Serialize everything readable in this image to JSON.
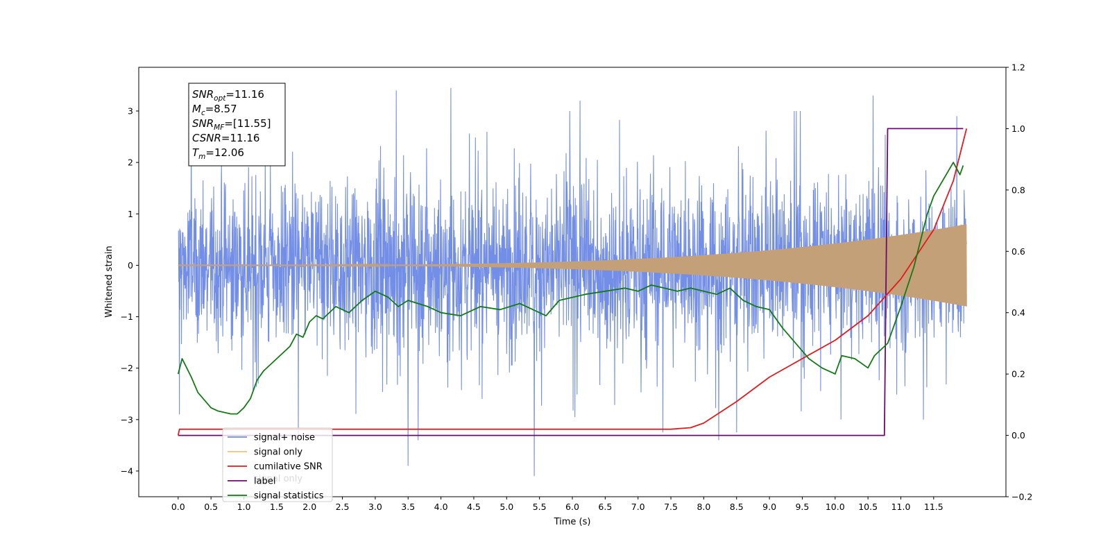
{
  "chart_data": {
    "type": "line",
    "xlabel": "Time (s)",
    "ylabel": "Whitened strain",
    "xlim": [
      -0.6,
      12.6
    ],
    "ylim": [
      -4.5,
      3.85
    ],
    "y2lim": [
      -0.2,
      1.2
    ],
    "grid": false,
    "legend_placement": "lower-left",
    "x_ticks": [
      "0.0",
      "0.5",
      "1.0",
      "1.5",
      "2.0",
      "2.5",
      "3.0",
      "3.5",
      "4.0",
      "4.5",
      "5.0",
      "5.5",
      "6.0",
      "6.5",
      "7.0",
      "7.5",
      "8.0",
      "8.5",
      "9.0",
      "9.5",
      "10.0",
      "10.5",
      "11.0",
      "11.5"
    ],
    "y_ticks": [
      "3",
      "2",
      "1",
      "0",
      "−1",
      "−2",
      "−3",
      "−4"
    ],
    "y2_ticks": [
      "1.2",
      "1.0",
      "0.8",
      "0.6",
      "0.4",
      "0.2",
      "0.0",
      "−0.2"
    ],
    "stats_box": [
      {
        "main": "SNR",
        "sub": "opt",
        "rest": "=11.16"
      },
      {
        "main": "M",
        "sub": "c",
        "rest": "=8.57"
      },
      {
        "main": "SNR",
        "sub": "MF",
        "rest": "=[11.55]"
      },
      {
        "main": "CSNR",
        "sub": "",
        "rest": "=11.16"
      },
      {
        "main": "T",
        "sub": "m",
        "rest": "=12.06"
      }
    ],
    "legend": [
      {
        "label": "signal+ noise",
        "color": "#6b88e6"
      },
      {
        "label": "signal only",
        "color": "#f5c26b"
      },
      {
        "label": "cumilative SNR",
        "color": "#e41a1c"
      },
      {
        "label": "label",
        "color": "#6a0d6a"
      },
      {
        "label": "signal statistics",
        "color": "#137a13"
      }
    ],
    "ghost_label": "signal only",
    "series": [
      {
        "name": "signal+ noise",
        "axis": "left",
        "color": "#6b88e6",
        "x_range": [
          0.0,
          12.0
        ],
        "envelope_low": -1.6,
        "envelope_high": 1.6,
        "spikes": [
          [
            0.02,
            -2.9
          ],
          [
            0.2,
            2.7
          ],
          [
            1.83,
            -3.3
          ],
          [
            3.32,
            3.4
          ],
          [
            3.5,
            -3.9
          ],
          [
            3.65,
            -3.4
          ],
          [
            4.15,
            3.45
          ],
          [
            5.42,
            -4.1
          ],
          [
            6.12,
            3.2
          ],
          [
            7.38,
            -3.25
          ],
          [
            8.23,
            -3.4
          ],
          [
            8.5,
            -3.25
          ],
          [
            10.58,
            3.3
          ],
          [
            11.85,
            2.9
          ]
        ]
      },
      {
        "name": "signal only",
        "axis": "left",
        "color": "#c4a078",
        "x_range": [
          0.0,
          12.0
        ],
        "amp_start": 0.005,
        "amp_end": 0.8,
        "chirp_exponent": 3.5
      },
      {
        "name": "cumilative SNR",
        "axis": "right",
        "color": "#e41a1c",
        "x": [
          0.0,
          0.02,
          1.0,
          3.0,
          5.0,
          7.0,
          7.5,
          7.8,
          8.0,
          8.5,
          9.0,
          9.5,
          10.0,
          10.5,
          11.0,
          11.5,
          11.8,
          12.0
        ],
        "y": [
          0.0,
          0.02,
          0.02,
          0.02,
          0.02,
          0.02,
          0.02,
          0.025,
          0.04,
          0.11,
          0.19,
          0.25,
          0.31,
          0.39,
          0.51,
          0.67,
          0.83,
          1.0
        ]
      },
      {
        "name": "label",
        "axis": "right",
        "color": "#6a0d6a",
        "x": [
          0.0,
          10.75,
          10.8,
          11.95
        ],
        "y": [
          0.0,
          0.0,
          1.0,
          1.0
        ]
      },
      {
        "name": "signal statistics",
        "axis": "right",
        "color": "#137a13",
        "x": [
          0.0,
          0.06,
          0.2,
          0.3,
          0.5,
          0.6,
          0.8,
          0.9,
          1.0,
          1.1,
          1.2,
          1.3,
          1.5,
          1.7,
          1.8,
          1.9,
          2.0,
          2.1,
          2.2,
          2.4,
          2.6,
          2.8,
          3.0,
          3.2,
          3.35,
          3.5,
          3.65,
          3.8,
          4.0,
          4.3,
          4.6,
          4.9,
          5.2,
          5.4,
          5.6,
          5.8,
          6.0,
          6.2,
          6.5,
          6.8,
          7.0,
          7.2,
          7.4,
          7.6,
          7.8,
          8.0,
          8.2,
          8.4,
          8.6,
          8.8,
          9.0,
          9.2,
          9.4,
          9.6,
          9.8,
          10.0,
          10.1,
          10.3,
          10.5,
          10.6,
          10.8,
          11.0,
          11.2,
          11.4,
          11.5,
          11.8,
          11.9,
          11.95
        ],
        "y": [
          0.2,
          0.25,
          0.19,
          0.14,
          0.09,
          0.08,
          0.07,
          0.07,
          0.09,
          0.12,
          0.18,
          0.21,
          0.25,
          0.29,
          0.33,
          0.32,
          0.37,
          0.39,
          0.38,
          0.42,
          0.4,
          0.44,
          0.47,
          0.45,
          0.42,
          0.44,
          0.43,
          0.42,
          0.4,
          0.39,
          0.42,
          0.41,
          0.43,
          0.41,
          0.39,
          0.44,
          0.45,
          0.46,
          0.47,
          0.48,
          0.47,
          0.49,
          0.48,
          0.47,
          0.48,
          0.47,
          0.46,
          0.48,
          0.44,
          0.42,
          0.41,
          0.35,
          0.3,
          0.25,
          0.22,
          0.2,
          0.26,
          0.25,
          0.22,
          0.26,
          0.3,
          0.42,
          0.55,
          0.72,
          0.78,
          0.89,
          0.85,
          0.88
        ]
      }
    ]
  }
}
